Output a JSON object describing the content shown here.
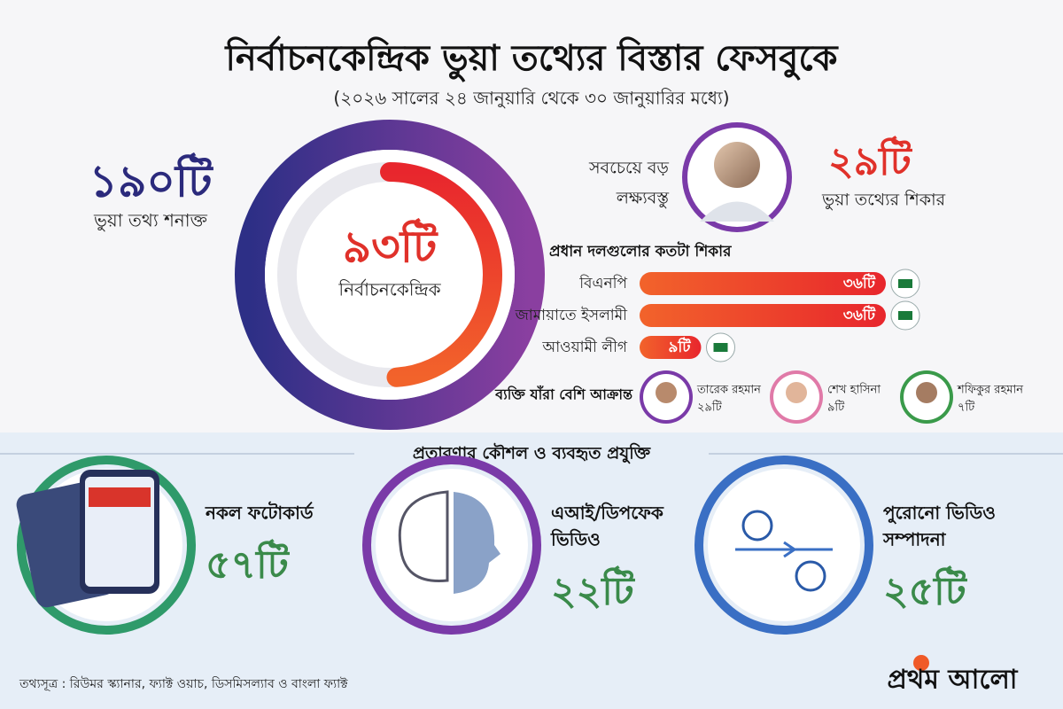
{
  "header": {
    "title": "নির্বাচনকেন্দ্রিক ভুয়া তথ্যের বিস্তার ফেসবুকে",
    "subtitle": "(২০২৬ সালের ২৪ জানুয়ারি থেকে ৩০ জানুয়ারির মধ্যে)"
  },
  "total": {
    "value": 190,
    "label": "১৯০টি",
    "caption": "ভুয়া তথ্য শনাক্ত"
  },
  "election": {
    "value": 93,
    "label": "৯৩টি",
    "caption": "নির্বাচনকেন্দ্রিক"
  },
  "top_target": {
    "caption_lines": [
      "সবচেয়ে বড়",
      "লক্ষ্যবস্তু"
    ],
    "label": "২৯টি",
    "caption": "ভুয়া তথ্যের শিকার"
  },
  "parties": {
    "heading": "প্রধান দলগুলোর কতটা শিকার",
    "items": [
      {
        "name": "বিএনপি",
        "value": 36,
        "label": "৩৬টি"
      },
      {
        "name": "জামায়াতে ইসলামী",
        "value": 36,
        "label": "৩৬টি"
      },
      {
        "name": "আওয়ামী লীগ",
        "value": 9,
        "label": "৯টি"
      }
    ]
  },
  "persons": {
    "heading": "ব্যক্তি যাঁরা বেশি আক্রান্ত",
    "items": [
      {
        "name": "তারেক রহমান",
        "label": "২৯টি"
      },
      {
        "name": "শেখ হাসিনা",
        "label": "৯টি"
      },
      {
        "name": "শফিকুর রহমান",
        "label": "৭টি"
      }
    ]
  },
  "methods": {
    "heading": "প্রতারণার কৌশল ও ব্যবহৃত প্রযুক্তি",
    "items": [
      {
        "name_lines": [
          "নকল ফটোকার্ড"
        ],
        "label": "৫৭টি"
      },
      {
        "name_lines": [
          "এআই/ডিপফেক",
          "ভিডিও"
        ],
        "label": "২২টি"
      },
      {
        "name_lines": [
          "পুরোনো ভিডিও",
          "সম্পাদনা"
        ],
        "label": "২৫টি"
      }
    ]
  },
  "source": "তথ্যসূত্র : রিউমর স্ক্যানার, ফ্যাক্ট ওয়াচ, ডিসমিসল্যাব ও বাংলা ফ্যাক্ট",
  "logo": "প্রথম আলো"
}
